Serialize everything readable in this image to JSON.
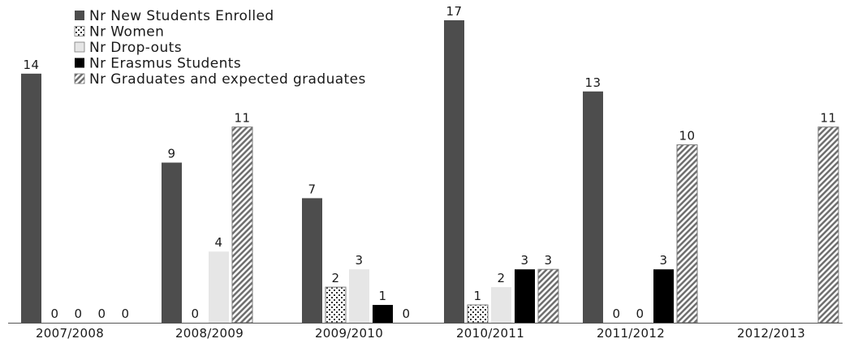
{
  "chart_data": {
    "type": "bar",
    "categories": [
      "2007/2008",
      "2008/2009",
      "2009/2010",
      "2010/2011",
      "2011/2012",
      "2012/2013"
    ],
    "series": [
      {
        "name": "Nr New Students Enrolled",
        "values": [
          14,
          9,
          7,
          17,
          13,
          null
        ],
        "color": "#4d4d4d",
        "pattern": "solid"
      },
      {
        "name": "Nr Women",
        "values": [
          0,
          0,
          2,
          1,
          0,
          null
        ],
        "color": "#ffffff",
        "pattern": "dots"
      },
      {
        "name": "Nr Drop-outs",
        "values": [
          0,
          4,
          3,
          2,
          0,
          null
        ],
        "color": "#e6e6e6",
        "pattern": "solid"
      },
      {
        "name": "Nr Erasmus Students",
        "values": [
          0,
          null,
          1,
          3,
          3,
          null
        ],
        "color": "#000000",
        "pattern": "solid"
      },
      {
        "name": "Nr Graduates and expected graduates",
        "values": [
          0,
          11,
          0,
          3,
          10,
          11
        ],
        "color": "#ffffff",
        "pattern": "diagonal"
      }
    ],
    "ylim": [
      0,
      17
    ],
    "grid": false,
    "legend_position": "top-left",
    "data_labels": true,
    "title": "",
    "xlabel": "",
    "ylabel": ""
  }
}
